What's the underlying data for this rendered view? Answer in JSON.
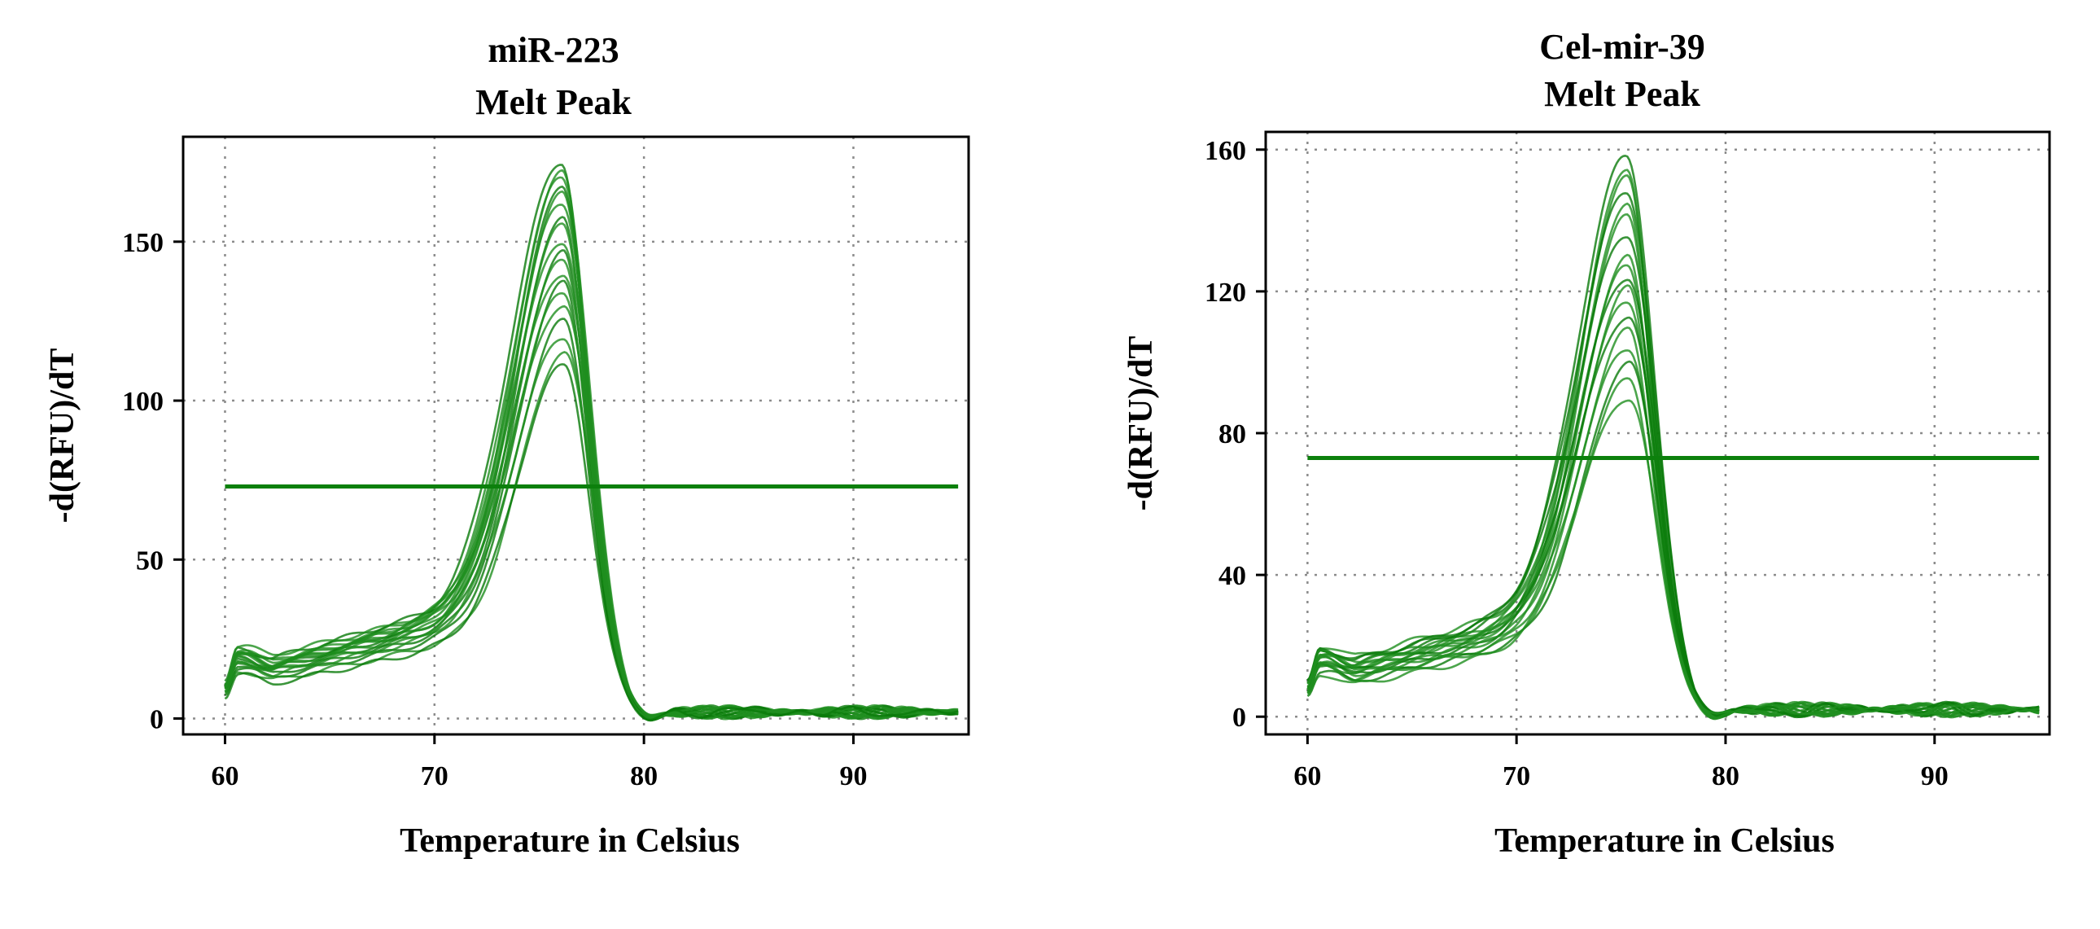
{
  "colors": {
    "curve": "#1f8f1f",
    "curve_dark": "#0a7a0a",
    "threshold": "#0c800c",
    "grid": "#8c8c8c",
    "frame": "#000000"
  },
  "chart_data": [
    {
      "type": "line",
      "title": "miR-223",
      "subtitle": "Melt Peak",
      "xlabel": "Temperature in  Celsius",
      "ylabel": "-d(RFU)/dT",
      "xlim": [
        58,
        95.5
      ],
      "ylim": [
        -5,
        183
      ],
      "xticks": [
        60,
        70,
        80,
        90
      ],
      "yticks": [
        0,
        50,
        100,
        150
      ],
      "grid": true,
      "threshold": 73,
      "peak_temperature": 76,
      "series": [
        {
          "peak": 175,
          "base_low": 19,
          "shoulder": 42
        },
        {
          "peak": 172,
          "base_low": 21,
          "shoulder": 44
        },
        {
          "peak": 170,
          "base_low": 20,
          "shoulder": 43
        },
        {
          "peak": 168,
          "base_low": 22,
          "shoulder": 45
        },
        {
          "peak": 165,
          "base_low": 21,
          "shoulder": 41
        },
        {
          "peak": 162,
          "base_low": 20,
          "shoulder": 40
        },
        {
          "peak": 158,
          "base_low": 19,
          "shoulder": 39
        },
        {
          "peak": 155,
          "base_low": 23,
          "shoulder": 42
        },
        {
          "peak": 150,
          "base_low": 20,
          "shoulder": 38
        },
        {
          "peak": 147,
          "base_low": 18,
          "shoulder": 37
        },
        {
          "peak": 144,
          "base_low": 21,
          "shoulder": 40
        },
        {
          "peak": 140,
          "base_low": 19,
          "shoulder": 36
        },
        {
          "peak": 137,
          "base_low": 17,
          "shoulder": 35
        },
        {
          "peak": 134,
          "base_low": 20,
          "shoulder": 37
        },
        {
          "peak": 130,
          "base_low": 18,
          "shoulder": 34
        },
        {
          "peak": 125,
          "base_low": 16,
          "shoulder": 33
        },
        {
          "peak": 120,
          "base_low": 17,
          "shoulder": 34
        },
        {
          "peak": 115,
          "base_low": 15,
          "shoulder": 31
        },
        {
          "peak": 111,
          "base_low": 14,
          "shoulder": 30
        }
      ]
    },
    {
      "type": "line",
      "title": "Cel-mir-39",
      "subtitle": "Melt Peak",
      "xlabel": "Temperature in  Celsius",
      "ylabel": "-d(RFU)/dT",
      "xlim": [
        58,
        95.5
      ],
      "ylim": [
        -5,
        165
      ],
      "xticks": [
        60,
        70,
        80,
        90
      ],
      "yticks": [
        0,
        40,
        80,
        120,
        160
      ],
      "grid": true,
      "threshold": 73,
      "peak_temperature": 75.5,
      "series": [
        {
          "peak": 158,
          "base_low": 18,
          "shoulder": 36
        },
        {
          "peak": 155,
          "base_low": 20,
          "shoulder": 38
        },
        {
          "peak": 152,
          "base_low": 17,
          "shoulder": 35
        },
        {
          "peak": 148,
          "base_low": 19,
          "shoulder": 37
        },
        {
          "peak": 145,
          "base_low": 18,
          "shoulder": 34
        },
        {
          "peak": 141,
          "base_low": 16,
          "shoulder": 33
        },
        {
          "peak": 136,
          "base_low": 19,
          "shoulder": 36
        },
        {
          "peak": 130,
          "base_low": 17,
          "shoulder": 32
        },
        {
          "peak": 127,
          "base_low": 18,
          "shoulder": 33
        },
        {
          "peak": 124,
          "base_low": 16,
          "shoulder": 31
        },
        {
          "peak": 121,
          "base_low": 15,
          "shoulder": 30
        },
        {
          "peak": 117,
          "base_low": 17,
          "shoulder": 32
        },
        {
          "peak": 113,
          "base_low": 15,
          "shoulder": 29
        },
        {
          "peak": 109,
          "base_low": 14,
          "shoulder": 28
        },
        {
          "peak": 104,
          "base_low": 15,
          "shoulder": 29
        },
        {
          "peak": 100,
          "base_low": 13,
          "shoulder": 27
        },
        {
          "peak": 95,
          "base_low": 14,
          "shoulder": 27
        },
        {
          "peak": 90,
          "base_low": 12,
          "shoulder": 25
        }
      ]
    }
  ]
}
